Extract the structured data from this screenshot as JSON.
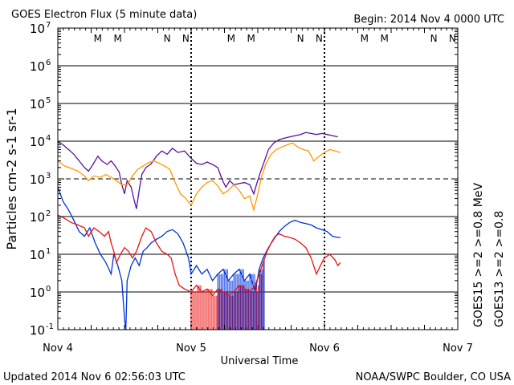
{
  "header": {
    "title": "GOES Electron Flux (5 minute data)",
    "begin": "Begin: 2014 Nov 4 0000 UTC"
  },
  "footer": {
    "updated": "Updated 2014 Nov  6 02:56:03 UTC",
    "credit": "NOAA/SWPC Boulder, CO USA"
  },
  "chart_data": {
    "type": "line",
    "title": "GOES Electron Flux (5 minute data)",
    "xlabel": "Universal Time",
    "ylabel": "Particles cm-2 s-1 sr-1",
    "yscale": "log",
    "ylim": [
      0.1,
      10000000
    ],
    "xlim_days": [
      0,
      3
    ],
    "x_tick_labels": [
      "Nov 4",
      "Nov 5",
      "Nov 6",
      "Nov 7"
    ],
    "y_ticks": [
      0.1,
      1,
      10,
      100,
      1000,
      10000,
      100000,
      1000000,
      10000000
    ],
    "grid": true,
    "dashed_reference_level": 1000,
    "legend_position": "right, vertical",
    "legend": [
      {
        "label": "GOES15",
        "color": "#000000",
        "series": "GOES15"
      },
      {
        "label": ">=2",
        "color": "#0033dd",
        "series": "GOES15"
      },
      {
        "label": ">=0.8  MeV",
        "color": "#5b0f9e",
        "series": "GOES15"
      },
      {
        "label": "GOES13",
        "color": "#000000",
        "series": "GOES13"
      },
      {
        "label": ">=2",
        "color": "#ee1111",
        "series": "GOES13"
      },
      {
        "label": ">=0.8",
        "color": "#ff9900",
        "series": "GOES13"
      }
    ],
    "markers": [
      {
        "label": "M",
        "day": 0.3,
        "color": "#ee1111"
      },
      {
        "label": "M",
        "day": 0.45,
        "color": "#0033dd"
      },
      {
        "label": "N",
        "day": 0.82,
        "color": "#ee1111"
      },
      {
        "label": "N",
        "day": 0.96,
        "color": "#0033dd"
      },
      {
        "label": "M",
        "day": 1.3,
        "color": "#ee1111"
      },
      {
        "label": "M",
        "day": 1.45,
        "color": "#0033dd"
      },
      {
        "label": "N",
        "day": 1.82,
        "color": "#ee1111"
      },
      {
        "label": "N",
        "day": 1.96,
        "color": "#0033dd"
      },
      {
        "label": "M",
        "day": 2.3,
        "color": "#ee1111"
      },
      {
        "label": "M",
        "day": 2.45,
        "color": "#0033dd"
      },
      {
        "label": "N",
        "day": 2.82,
        "color": "#ee1111"
      },
      {
        "label": "N",
        "day": 2.96,
        "color": "#0033dd"
      }
    ],
    "series": [
      {
        "name": "GOES15 >=0.8 MeV",
        "color": "#5b0f9e",
        "points": [
          [
            0.0,
            10000
          ],
          [
            0.04,
            8000
          ],
          [
            0.08,
            6000
          ],
          [
            0.12,
            4500
          ],
          [
            0.16,
            3000
          ],
          [
            0.2,
            2000
          ],
          [
            0.23,
            1600
          ],
          [
            0.26,
            2300
          ],
          [
            0.3,
            4000
          ],
          [
            0.33,
            3000
          ],
          [
            0.37,
            2400
          ],
          [
            0.4,
            3000
          ],
          [
            0.43,
            2200
          ],
          [
            0.46,
            1500
          ],
          [
            0.48,
            700
          ],
          [
            0.5,
            400
          ],
          [
            0.52,
            900
          ],
          [
            0.55,
            600
          ],
          [
            0.57,
            300
          ],
          [
            0.59,
            160
          ],
          [
            0.61,
            500
          ],
          [
            0.63,
            1300
          ],
          [
            0.66,
            2000
          ],
          [
            0.7,
            2500
          ],
          [
            0.74,
            4000
          ],
          [
            0.78,
            5500
          ],
          [
            0.82,
            4500
          ],
          [
            0.86,
            6500
          ],
          [
            0.9,
            5000
          ],
          [
            0.95,
            5500
          ],
          [
            1.0,
            3500
          ],
          [
            1.04,
            2600
          ],
          [
            1.08,
            2400
          ],
          [
            1.12,
            2800
          ],
          [
            1.16,
            2400
          ],
          [
            1.2,
            2000
          ],
          [
            1.23,
            1000
          ],
          [
            1.26,
            600
          ],
          [
            1.29,
            900
          ],
          [
            1.32,
            700
          ],
          [
            1.36,
            750
          ],
          [
            1.4,
            800
          ],
          [
            1.44,
            700
          ],
          [
            1.47,
            400
          ],
          [
            1.49,
            700
          ],
          [
            1.52,
            1500
          ],
          [
            1.55,
            3000
          ],
          [
            1.58,
            6000
          ],
          [
            1.62,
            9000
          ],
          [
            1.66,
            11000
          ],
          [
            1.7,
            12000
          ],
          [
            1.74,
            13000
          ],
          [
            1.78,
            14000
          ],
          [
            1.82,
            15000
          ],
          [
            1.86,
            17000
          ],
          [
            1.9,
            16000
          ],
          [
            1.94,
            15000
          ],
          [
            1.98,
            16000
          ],
          [
            2.02,
            15000
          ],
          [
            2.06,
            14000
          ],
          [
            2.1,
            13000
          ]
        ]
      },
      {
        "name": "GOES13 >=0.8 MeV",
        "color": "#ff9900",
        "points": [
          [
            0.0,
            3000
          ],
          [
            0.05,
            2200
          ],
          [
            0.1,
            1900
          ],
          [
            0.15,
            1600
          ],
          [
            0.2,
            1200
          ],
          [
            0.23,
            900
          ],
          [
            0.27,
            1200
          ],
          [
            0.32,
            1100
          ],
          [
            0.36,
            1300
          ],
          [
            0.4,
            1100
          ],
          [
            0.44,
            900
          ],
          [
            0.48,
            700
          ],
          [
            0.52,
            700
          ],
          [
            0.56,
            1200
          ],
          [
            0.6,
            1800
          ],
          [
            0.64,
            2200
          ],
          [
            0.68,
            2700
          ],
          [
            0.72,
            3000
          ],
          [
            0.76,
            2600
          ],
          [
            0.8,
            2200
          ],
          [
            0.84,
            1800
          ],
          [
            0.88,
            800
          ],
          [
            0.92,
            400
          ],
          [
            0.96,
            300
          ],
          [
            1.0,
            200
          ],
          [
            1.04,
            400
          ],
          [
            1.08,
            600
          ],
          [
            1.12,
            800
          ],
          [
            1.16,
            900
          ],
          [
            1.2,
            650
          ],
          [
            1.24,
            400
          ],
          [
            1.28,
            500
          ],
          [
            1.32,
            700
          ],
          [
            1.36,
            500
          ],
          [
            1.4,
            300
          ],
          [
            1.44,
            350
          ],
          [
            1.47,
            150
          ],
          [
            1.5,
            400
          ],
          [
            1.53,
            1200
          ],
          [
            1.56,
            2500
          ],
          [
            1.6,
            4500
          ],
          [
            1.64,
            6000
          ],
          [
            1.68,
            7000
          ],
          [
            1.72,
            8000
          ],
          [
            1.76,
            9000
          ],
          [
            1.8,
            7000
          ],
          [
            1.84,
            6000
          ],
          [
            1.88,
            5500
          ],
          [
            1.92,
            3000
          ],
          [
            1.96,
            4000
          ],
          [
            2.0,
            5000
          ],
          [
            2.04,
            6000
          ],
          [
            2.08,
            5500
          ],
          [
            2.12,
            5000
          ]
        ]
      },
      {
        "name": "GOES15 >=2 MeV",
        "color": "#0033dd",
        "points": [
          [
            0.0,
            600
          ],
          [
            0.04,
            250
          ],
          [
            0.08,
            150
          ],
          [
            0.12,
            80
          ],
          [
            0.16,
            40
          ],
          [
            0.2,
            30
          ],
          [
            0.24,
            50
          ],
          [
            0.28,
            20
          ],
          [
            0.32,
            10
          ],
          [
            0.36,
            6
          ],
          [
            0.4,
            3
          ],
          [
            0.42,
            10
          ],
          [
            0.45,
            5
          ],
          [
            0.48,
            2
          ],
          [
            0.5,
            0.2
          ],
          [
            0.51,
            0.1
          ],
          [
            0.52,
            2
          ],
          [
            0.55,
            5
          ],
          [
            0.58,
            8
          ],
          [
            0.61,
            5
          ],
          [
            0.64,
            12
          ],
          [
            0.67,
            15
          ],
          [
            0.7,
            20
          ],
          [
            0.74,
            25
          ],
          [
            0.78,
            30
          ],
          [
            0.82,
            40
          ],
          [
            0.86,
            45
          ],
          [
            0.9,
            35
          ],
          [
            0.94,
            20
          ],
          [
            0.98,
            8
          ],
          [
            1.0,
            3
          ],
          [
            1.04,
            5
          ],
          [
            1.08,
            3
          ],
          [
            1.12,
            4
          ],
          [
            1.16,
            2
          ],
          [
            1.2,
            3
          ],
          [
            1.24,
            4
          ],
          [
            1.28,
            2
          ],
          [
            1.32,
            3
          ],
          [
            1.36,
            4
          ],
          [
            1.4,
            2
          ],
          [
            1.44,
            3
          ],
          [
            1.48,
            1
          ],
          [
            1.51,
            4
          ],
          [
            1.54,
            8
          ],
          [
            1.58,
            15
          ],
          [
            1.62,
            25
          ],
          [
            1.66,
            40
          ],
          [
            1.7,
            55
          ],
          [
            1.74,
            70
          ],
          [
            1.78,
            80
          ],
          [
            1.82,
            70
          ],
          [
            1.86,
            65
          ],
          [
            1.9,
            60
          ],
          [
            1.94,
            50
          ],
          [
            1.98,
            45
          ],
          [
            2.02,
            40
          ],
          [
            2.06,
            30
          ],
          [
            2.1,
            28
          ],
          [
            2.12,
            28
          ]
        ]
      },
      {
        "name": "GOES13 >=2 MeV",
        "color": "#ee1111",
        "points": [
          [
            0.0,
            110
          ],
          [
            0.05,
            90
          ],
          [
            0.1,
            70
          ],
          [
            0.15,
            60
          ],
          [
            0.2,
            50
          ],
          [
            0.23,
            30
          ],
          [
            0.27,
            50
          ],
          [
            0.31,
            40
          ],
          [
            0.35,
            30
          ],
          [
            0.38,
            40
          ],
          [
            0.4,
            20
          ],
          [
            0.42,
            12
          ],
          [
            0.44,
            6
          ],
          [
            0.47,
            10
          ],
          [
            0.5,
            15
          ],
          [
            0.53,
            12
          ],
          [
            0.56,
            8
          ],
          [
            0.59,
            12
          ],
          [
            0.63,
            30
          ],
          [
            0.66,
            50
          ],
          [
            0.7,
            40
          ],
          [
            0.74,
            20
          ],
          [
            0.78,
            12
          ],
          [
            0.82,
            10
          ],
          [
            0.85,
            8
          ],
          [
            0.88,
            3
          ],
          [
            0.91,
            1.5
          ],
          [
            0.95,
            1.2
          ],
          [
            1.0,
            1
          ],
          [
            1.04,
            1.5
          ],
          [
            1.08,
            1
          ],
          [
            1.12,
            1.2
          ],
          [
            1.16,
            0.8
          ],
          [
            1.2,
            1.2
          ],
          [
            1.24,
            1
          ],
          [
            1.28,
            0.8
          ],
          [
            1.32,
            1
          ],
          [
            1.36,
            1.5
          ],
          [
            1.4,
            1.2
          ],
          [
            1.44,
            1
          ],
          [
            1.48,
            1.5
          ],
          [
            1.51,
            3
          ],
          [
            1.54,
            6
          ],
          [
            1.57,
            12
          ],
          [
            1.6,
            20
          ],
          [
            1.63,
            30
          ],
          [
            1.66,
            35
          ],
          [
            1.7,
            30
          ],
          [
            1.74,
            28
          ],
          [
            1.78,
            25
          ],
          [
            1.82,
            20
          ],
          [
            1.86,
            15
          ],
          [
            1.9,
            8
          ],
          [
            1.94,
            3
          ],
          [
            1.97,
            5
          ],
          [
            2.0,
            8
          ],
          [
            2.04,
            10
          ],
          [
            2.08,
            7
          ],
          [
            2.1,
            5
          ],
          [
            2.12,
            6
          ]
        ]
      }
    ],
    "spikes": [
      {
        "series": "GOES13 >=2 MeV",
        "color": "#ee1111",
        "day_range": [
          1.0,
          1.55
        ],
        "floor": 0.1
      },
      {
        "series": "GOES15 >=2 MeV",
        "color": "#0033dd",
        "day_range": [
          1.2,
          1.55
        ],
        "floor": 0.1
      }
    ]
  }
}
